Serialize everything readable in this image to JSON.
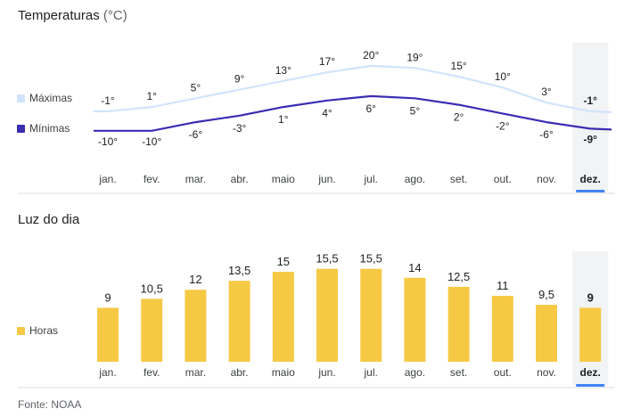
{
  "temperature_section": {
    "title": "Temperaturas",
    "unit": "(°C)",
    "legend": [
      {
        "label": "Máximas",
        "color": "#d2e3fc"
      },
      {
        "label": "Mínimas",
        "color": "#3b2cb3"
      }
    ]
  },
  "daylight_section": {
    "title": "Luz do dia",
    "legend": [
      {
        "label": "Horas",
        "color": "#f6c945"
      }
    ]
  },
  "source": "Fonte: NOAA",
  "selected_month_index": 11,
  "colors": {
    "max_line": "#d2e3fc",
    "min_line": "#3b2cb3",
    "bar": "#f6c945",
    "highlight_bg": "#f1f3f4",
    "highlight_bar": "#4285f4",
    "axis_line": "#dadce0"
  },
  "chart_data": [
    {
      "type": "line",
      "title": "Temperaturas",
      "categories": [
        "jan.",
        "fev.",
        "mar.",
        "abr.",
        "maio",
        "jun.",
        "jul.",
        "ago.",
        "set.",
        "out.",
        "nov.",
        "dez."
      ],
      "series": [
        {
          "name": "Máximas",
          "values": [
            -1,
            1,
            5,
            9,
            13,
            17,
            20,
            19,
            15,
            10,
            3,
            -1
          ],
          "labels": [
            "-1°",
            "1°",
            "5°",
            "9°",
            "13°",
            "17°",
            "20°",
            "19°",
            "15°",
            "10°",
            "3°",
            "-1°"
          ]
        },
        {
          "name": "Mínimas",
          "values": [
            -10,
            -10,
            -6,
            -3,
            1,
            4,
            6,
            5,
            2,
            -2,
            -6,
            -9
          ],
          "labels": [
            "-10°",
            "-10°",
            "-6°",
            "-3°",
            "1°",
            "4°",
            "6°",
            "5°",
            "2°",
            "-2°",
            "-6°",
            "-9°"
          ]
        }
      ]
    },
    {
      "type": "bar",
      "title": "Luz do dia",
      "categories": [
        "jan.",
        "fev.",
        "mar.",
        "abr.",
        "maio",
        "jun.",
        "jul.",
        "ago.",
        "set.",
        "out.",
        "nov.",
        "dez."
      ],
      "series": [
        {
          "name": "Horas",
          "values": [
            9,
            10.5,
            12,
            13.5,
            15,
            15.5,
            15.5,
            14,
            12.5,
            11,
            9.5,
            9
          ],
          "labels": [
            "9",
            "10,5",
            "12",
            "13,5",
            "15",
            "15,5",
            "15,5",
            "14",
            "12,5",
            "11",
            "9,5",
            "9"
          ]
        }
      ]
    }
  ]
}
